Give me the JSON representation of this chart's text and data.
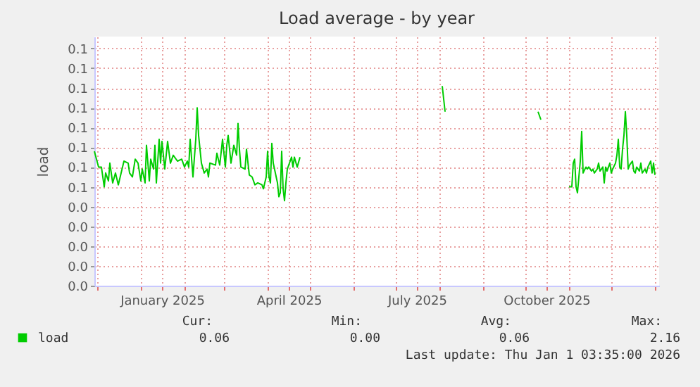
{
  "chart_data": {
    "type": "line",
    "title": "Load average - by year",
    "ylabel": "load",
    "xlim": [
      "2024-11-29",
      "2026-01-04"
    ],
    "ylim": [
      0,
      0.126
    ],
    "xticks": [
      {
        "value": "2024-12-01",
        "label": null
      },
      {
        "value": "2025-01-01",
        "label": null
      },
      {
        "value": "2025-01-16",
        "label": "January 2025"
      },
      {
        "value": "2025-02-01",
        "label": null
      },
      {
        "value": "2025-03-01",
        "label": null
      },
      {
        "value": "2025-04-01",
        "label": null
      },
      {
        "value": "2025-04-16",
        "label": "April 2025"
      },
      {
        "value": "2025-05-01",
        "label": null
      },
      {
        "value": "2025-06-01",
        "label": null
      },
      {
        "value": "2025-07-01",
        "label": null
      },
      {
        "value": "2025-07-16",
        "label": "July 2025"
      },
      {
        "value": "2025-08-01",
        "label": null
      },
      {
        "value": "2025-09-01",
        "label": null
      },
      {
        "value": "2025-10-01",
        "label": null
      },
      {
        "value": "2025-10-16",
        "label": "October 2025"
      },
      {
        "value": "2025-11-01",
        "label": null
      },
      {
        "value": "2025-12-01",
        "label": null
      },
      {
        "value": "2026-01-01",
        "label": null
      }
    ],
    "yticks": [
      {
        "value": 0,
        "label": "0.0"
      },
      {
        "value": 0.01,
        "label": "0.0"
      },
      {
        "value": 0.02,
        "label": "0.0"
      },
      {
        "value": 0.03,
        "label": "0.0"
      },
      {
        "value": 0.04,
        "label": "0.0"
      },
      {
        "value": 0.05,
        "label": "0.1"
      },
      {
        "value": 0.06,
        "label": "0.1"
      },
      {
        "value": 0.07,
        "label": "0.1"
      },
      {
        "value": 0.08,
        "label": "0.1"
      },
      {
        "value": 0.09,
        "label": "0.1"
      },
      {
        "value": 0.1,
        "label": "0.1"
      },
      {
        "value": 0.11,
        "label": "0.1"
      },
      {
        "value": 0.12,
        "label": "0.1"
      }
    ],
    "grid": true,
    "legend": "bottom",
    "marker": "none",
    "line_style": "solid",
    "x": [
      "2024-11-29",
      "2024-12-02",
      "2024-12-04",
      "2024-12-06",
      "2024-12-07",
      "2024-12-09",
      "2024-12-10",
      "2024-12-12",
      "2024-12-14",
      "2024-12-16",
      "2024-12-20",
      "2024-12-23",
      "2024-12-24",
      "2024-12-26",
      "2024-12-28",
      "2024-12-30",
      "2025-01-01",
      "2025-01-02",
      "2025-01-04",
      "2025-01-05",
      "2025-01-07",
      "2025-01-08",
      "2025-01-10",
      "2025-01-11",
      "2025-01-12",
      "2025-01-14",
      "2025-01-15",
      "2025-01-16",
      "2025-01-18",
      "2025-01-20",
      "2025-01-22",
      "2025-01-24",
      "2025-01-27",
      "2025-01-30",
      "2025-02-01",
      "2025-02-03",
      "2025-02-04",
      "2025-02-05",
      "2025-02-07",
      "2025-02-09",
      "2025-02-10",
      "2025-02-11",
      "2025-02-13",
      "2025-02-15",
      "2025-02-17",
      "2025-02-18",
      "2025-02-19",
      "2025-02-23",
      "2025-02-24",
      "2025-02-26",
      "2025-02-28",
      "2025-03-02",
      "2025-03-03",
      "2025-03-04",
      "2025-03-06",
      "2025-03-08",
      "2025-03-10",
      "2025-03-11",
      "2025-03-12",
      "2025-03-13",
      "2025-03-16",
      "2025-03-17",
      "2025-03-19",
      "2025-03-21",
      "2025-03-23",
      "2025-03-25",
      "2025-03-28",
      "2025-03-29",
      "2025-03-31",
      "2025-04-01",
      "2025-04-02",
      "2025-04-03",
      "2025-04-04",
      "2025-04-05",
      "2025-04-08",
      "2025-04-09",
      "2025-04-10",
      "2025-04-11",
      "2025-04-12",
      "2025-04-13",
      "2025-04-14",
      "2025-04-15",
      "2025-04-18",
      "2025-04-19",
      "2025-04-20",
      "2025-04-22",
      "2025-04-24",
      "2025-06-01",
      "2025-08-03",
      "2025-08-05",
      "2025-09-01",
      "2025-10-10",
      "2025-10-12",
      "2025-10-20",
      "2025-11-01",
      "2025-11-03",
      "2025-11-04",
      "2025-11-05",
      "2025-11-06",
      "2025-11-07",
      "2025-11-09",
      "2025-11-10",
      "2025-11-11",
      "2025-11-13",
      "2025-11-14",
      "2025-11-15",
      "2025-11-17",
      "2025-11-18",
      "2025-11-19",
      "2025-11-21",
      "2025-11-22",
      "2025-11-23",
      "2025-11-25",
      "2025-11-26",
      "2025-11-27",
      "2025-11-28",
      "2025-11-30",
      "2025-12-01",
      "2025-12-02",
      "2025-12-04",
      "2025-12-05",
      "2025-12-06",
      "2025-12-07",
      "2025-12-08",
      "2025-12-09",
      "2025-12-10",
      "2025-12-11",
      "2025-12-12",
      "2025-12-13",
      "2025-12-14",
      "2025-12-16",
      "2025-12-17",
      "2025-12-18",
      "2025-12-19",
      "2025-12-21",
      "2025-12-22",
      "2025-12-23",
      "2025-12-25",
      "2025-12-26",
      "2025-12-27",
      "2025-12-29",
      "2025-12-30",
      "2025-12-31",
      "2026-01-01"
    ],
    "series": [
      {
        "name": "load",
        "color": "#00cc00",
        "values": [
          0.068,
          0.06,
          0.06,
          0.05,
          0.057,
          0.053,
          0.062,
          0.052,
          0.057,
          0.051,
          0.063,
          0.062,
          0.057,
          0.055,
          0.064,
          0.062,
          0.053,
          0.059,
          0.052,
          0.071,
          0.053,
          0.064,
          0.059,
          0.071,
          0.052,
          0.074,
          0.062,
          0.073,
          0.059,
          0.073,
          0.062,
          0.066,
          0.063,
          0.064,
          0.06,
          0.063,
          0.06,
          0.074,
          0.055,
          0.074,
          0.09,
          0.076,
          0.062,
          0.057,
          0.059,
          0.055,
          0.062,
          0.061,
          0.067,
          0.061,
          0.074,
          0.06,
          0.071,
          0.076,
          0.062,
          0.071,
          0.066,
          0.082,
          0.069,
          0.06,
          0.059,
          0.069,
          0.056,
          0.055,
          0.051,
          0.052,
          0.051,
          0.049,
          0.055,
          0.068,
          0.055,
          0.052,
          0.072,
          0.062,
          0.052,
          0.045,
          0.047,
          0.068,
          0.049,
          0.043,
          0.052,
          0.059,
          0.065,
          0.06,
          0.065,
          0.06,
          0.065,
          null,
          0.101,
          0.088,
          null,
          0.088,
          0.084,
          null,
          0.05,
          0.05,
          0.062,
          0.064,
          0.05,
          0.047,
          0.063,
          0.078,
          0.057,
          0.06,
          0.059,
          0.06,
          0.058,
          0.059,
          0.057,
          0.059,
          0.062,
          0.058,
          0.06,
          0.052,
          0.06,
          0.058,
          0.062,
          0.057,
          0.059,
          0.062,
          0.066,
          0.074,
          0.06,
          0.059,
          0.069,
          0.076,
          0.088,
          0.076,
          0.059,
          0.061,
          0.063,
          0.058,
          0.057,
          0.06,
          0.058,
          0.062,
          0.057,
          0.059,
          0.057,
          0.06,
          0.063,
          0.057,
          0.062,
          0.056
        ]
      }
    ],
    "annotations": [
      "Cur:",
      "Min:",
      "Avg:",
      "Max:",
      "0.06",
      "0.00",
      "0.06",
      "2.16",
      "Last update: Thu Jan  1 03:35:00 2026"
    ]
  }
}
